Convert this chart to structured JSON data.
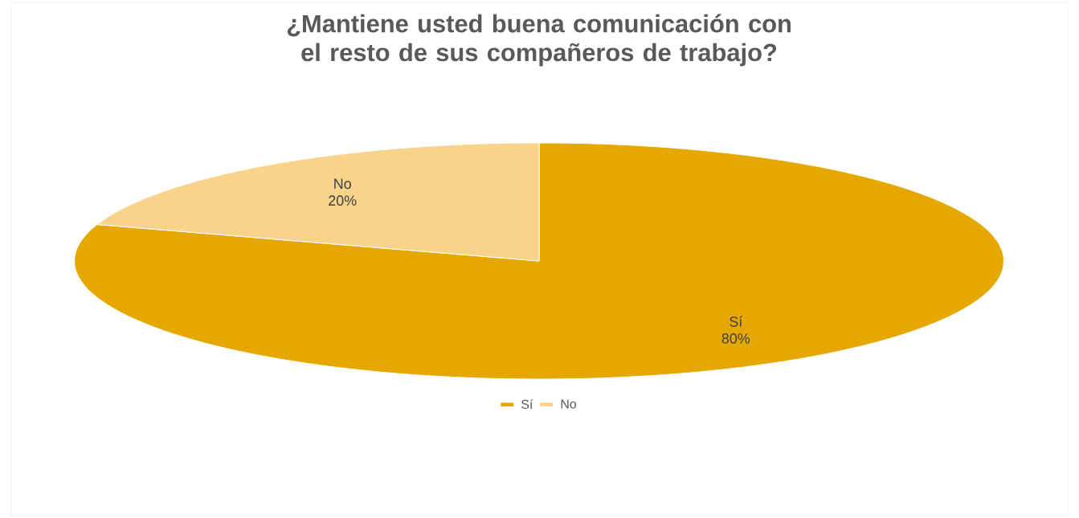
{
  "chart_data": {
    "type": "pie",
    "title": "¿Mantiene usted buena comunicación con el resto de sus compañeros de trabajo?",
    "categories": [
      "Sí",
      "No"
    ],
    "values": [
      80,
      20
    ],
    "colors": [
      "#e6a800",
      "#f9d38a"
    ],
    "value_labels": [
      "80%",
      "20%"
    ],
    "legend": "bottom"
  }
}
